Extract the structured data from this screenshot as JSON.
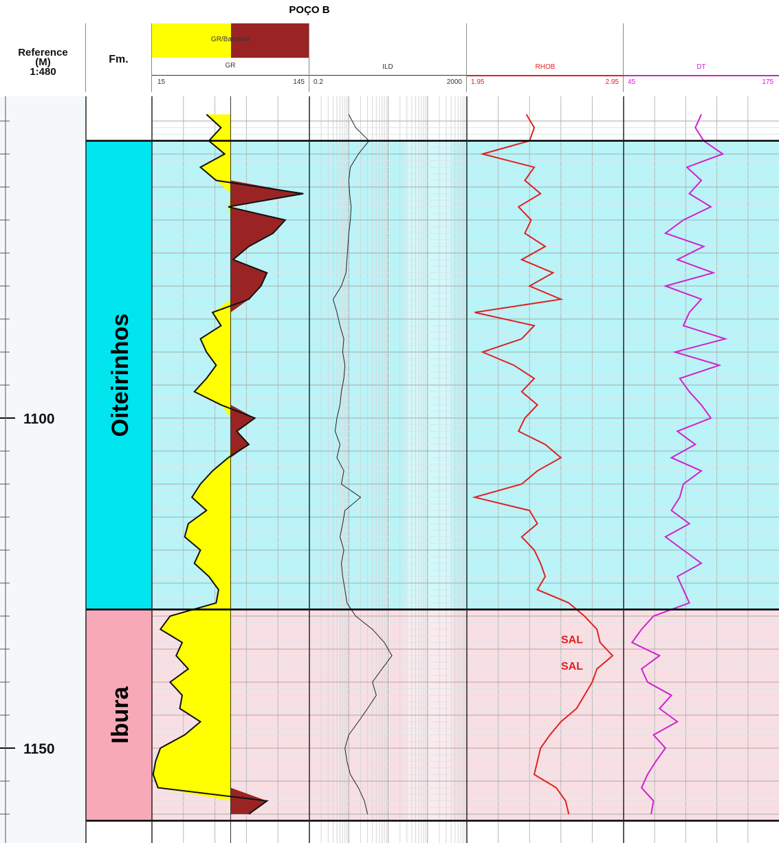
{
  "title": "POÇO B",
  "header": {
    "reference_label": "Reference",
    "unit_label": "(M)",
    "scale_label": "1:480",
    "formation_col_label": "Fm.",
    "gr_fill_label": "GR/Baseline",
    "tracks": [
      {
        "name": "GR",
        "min": "15",
        "max": "145",
        "color": "#333333"
      },
      {
        "name": "ILD",
        "min": "0.2",
        "max": "2000",
        "color": "#333333"
      },
      {
        "name": "RHOB",
        "min": "1.95",
        "max": "2.95",
        "color": "#e02020"
      },
      {
        "name": "DT",
        "min": "45",
        "max": "175",
        "color": "#d020d0"
      }
    ]
  },
  "colors": {
    "oiteirinhos": "#00e5ee",
    "oiteirinhos_bg": "#b8f4f8",
    "ibura": "#f7a9b8",
    "ibura_bg": "#f9dfe3",
    "gr_sand": "#ffff00",
    "gr_shale": "#9a2424",
    "rhob": "#e02020",
    "dt": "#d020d0",
    "ild": "#222222"
  },
  "chart_data": {
    "type": "line",
    "depth_axis": {
      "label": "Reference (M)",
      "range": [
        1053,
        1160
      ],
      "ticks": [
        1100,
        1150
      ]
    },
    "formations": [
      {
        "name": "Oiteirinhos",
        "top": 1058,
        "base": 1129
      },
      {
        "name": "Ibura",
        "top": 1129,
        "base": 1161
      }
    ],
    "annotations": [
      {
        "text": "SAL",
        "depth": 1133.5,
        "track": "RHOB"
      },
      {
        "text": "SAL",
        "depth": 1137.5,
        "track": "RHOB"
      }
    ],
    "gr_baseline": 80,
    "series": [
      {
        "name": "GR",
        "xlim": [
          15,
          145
        ],
        "depth": [
          1054,
          1056,
          1058,
          1060,
          1062,
          1064,
          1066,
          1068,
          1070,
          1072,
          1074,
          1076,
          1078,
          1080,
          1082,
          1084,
          1086,
          1088,
          1090,
          1092,
          1094,
          1096,
          1098,
          1100,
          1102,
          1104,
          1106,
          1108,
          1110,
          1112,
          1114,
          1116,
          1118,
          1120,
          1122,
          1124,
          1126,
          1128,
          1130,
          1132,
          1134,
          1136,
          1138,
          1140,
          1142,
          1144,
          1146,
          1148,
          1150,
          1152,
          1154,
          1156,
          1158,
          1160
        ],
        "values": [
          60,
          72,
          62,
          75,
          55,
          68,
          140,
          78,
          125,
          115,
          95,
          82,
          110,
          105,
          95,
          65,
          72,
          55,
          60,
          68,
          60,
          50,
          72,
          100,
          85,
          95,
          78,
          65,
          55,
          48,
          60,
          45,
          42,
          55,
          50,
          62,
          70,
          68,
          30,
          22,
          40,
          35,
          45,
          30,
          40,
          38,
          55,
          42,
          22,
          18,
          16,
          20,
          110,
          95
        ]
      },
      {
        "name": "ILD",
        "xlim": [
          0.2,
          2000
        ],
        "log": true,
        "depth": [
          1054,
          1056,
          1058,
          1060,
          1062,
          1064,
          1066,
          1068,
          1070,
          1072,
          1074,
          1076,
          1078,
          1080,
          1082,
          1084,
          1086,
          1088,
          1090,
          1092,
          1094,
          1096,
          1098,
          1100,
          1102,
          1104,
          1106,
          1108,
          1110,
          1112,
          1114,
          1116,
          1118,
          1120,
          1122,
          1124,
          1126,
          1128,
          1130,
          1132,
          1134,
          1136,
          1138,
          1140,
          1142,
          1144,
          1146,
          1148,
          1150,
          1152,
          1154,
          1156,
          1158,
          1160
        ],
        "values": [
          2.0,
          3.0,
          6.5,
          3.5,
          2.2,
          2.0,
          2.1,
          2.3,
          2.2,
          2.0,
          1.9,
          1.8,
          1.7,
          1.3,
          0.8,
          1.0,
          1.2,
          1.5,
          1.4,
          1.6,
          1.5,
          1.3,
          1.2,
          1.0,
          0.9,
          1.2,
          1.0,
          1.5,
          1.3,
          4.0,
          1.6,
          1.4,
          1.2,
          1.5,
          1.3,
          1.4,
          1.6,
          1.8,
          3.0,
          8.0,
          16.0,
          25.0,
          14.0,
          8.0,
          10.0,
          6.0,
          3.5,
          2.0,
          1.6,
          1.8,
          2.2,
          3.5,
          5.0,
          6.0
        ]
      },
      {
        "name": "RHOB",
        "xlim": [
          1.95,
          2.95
        ],
        "depth": [
          1054,
          1056,
          1058,
          1060,
          1062,
          1064,
          1066,
          1068,
          1070,
          1072,
          1074,
          1076,
          1078,
          1080,
          1082,
          1084,
          1086,
          1088,
          1090,
          1092,
          1094,
          1096,
          1098,
          1100,
          1102,
          1104,
          1106,
          1108,
          1110,
          1112,
          1114,
          1116,
          1118,
          1120,
          1122,
          1124,
          1126,
          1128,
          1130,
          1132,
          1134,
          1136,
          1138,
          1140,
          1142,
          1144,
          1146,
          1148,
          1150,
          1152,
          1154,
          1156,
          1158,
          1160
        ],
        "values": [
          2.33,
          2.38,
          2.35,
          2.05,
          2.38,
          2.32,
          2.42,
          2.28,
          2.36,
          2.32,
          2.45,
          2.3,
          2.5,
          2.35,
          2.55,
          2.0,
          2.38,
          2.3,
          2.05,
          2.25,
          2.38,
          2.3,
          2.4,
          2.32,
          2.28,
          2.45,
          2.55,
          2.4,
          2.3,
          2.0,
          2.35,
          2.4,
          2.3,
          2.38,
          2.42,
          2.45,
          2.4,
          2.6,
          2.7,
          2.78,
          2.8,
          2.88,
          2.78,
          2.75,
          2.7,
          2.65,
          2.55,
          2.48,
          2.42,
          2.4,
          2.38,
          2.52,
          2.58,
          2.6
        ]
      },
      {
        "name": "DT",
        "xlim": [
          45,
          175
        ],
        "depth": [
          1054,
          1056,
          1058,
          1060,
          1062,
          1064,
          1066,
          1068,
          1070,
          1072,
          1074,
          1076,
          1078,
          1080,
          1082,
          1084,
          1086,
          1088,
          1090,
          1092,
          1094,
          1096,
          1098,
          1100,
          1102,
          1104,
          1106,
          1108,
          1110,
          1112,
          1114,
          1116,
          1118,
          1120,
          1122,
          1124,
          1126,
          1128,
          1130,
          1132,
          1134,
          1136,
          1138,
          1140,
          1142,
          1144,
          1146,
          1148,
          1150,
          1152,
          1154,
          1156,
          1158,
          1160
        ],
        "values": [
          110,
          105,
          112,
          128,
          98,
          110,
          100,
          118,
          95,
          80,
          112,
          90,
          120,
          80,
          110,
          100,
          95,
          130,
          88,
          125,
          92,
          100,
          110,
          118,
          90,
          105,
          85,
          110,
          95,
          92,
          85,
          100,
          80,
          95,
          110,
          90,
          95,
          100,
          70,
          60,
          52,
          75,
          60,
          65,
          85,
          75,
          90,
          70,
          80,
          72,
          65,
          60,
          70,
          68
        ]
      }
    ]
  }
}
